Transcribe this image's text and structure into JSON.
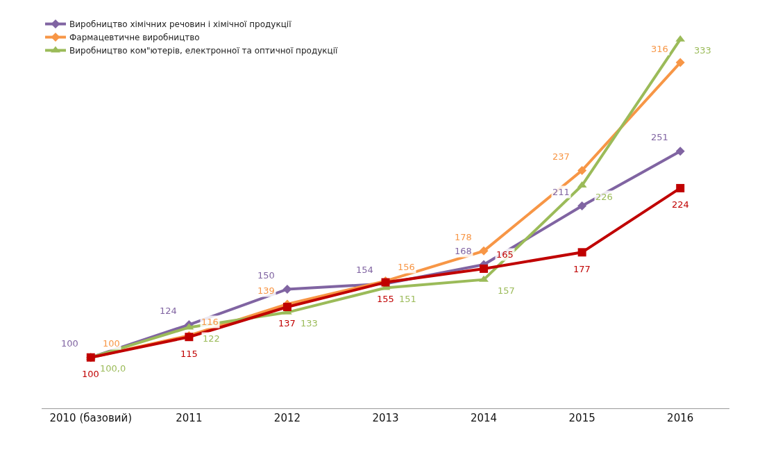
{
  "chart_data": {
    "type": "line",
    "categories": [
      "2010 (базовий)",
      "2011",
      "2012",
      "2013",
      "2014",
      "2015",
      "2016"
    ],
    "tick_labels": "x",
    "legend": "top left",
    "series": [
      {
        "name": "Виробництво хімічних речовин і хімічної продукції",
        "color": "#8064a2",
        "marker": "diamond",
        "values": [
          100,
          124,
          150,
          154,
          168,
          211,
          251
        ],
        "value_labels": [
          "100",
          "124",
          "150",
          "154",
          "168",
          "211",
          "251"
        ]
      },
      {
        "name": "Фармацевтичне виробництво",
        "color": "#f79646",
        "marker": "diamond",
        "values": [
          100,
          116,
          139,
          156,
          178,
          237,
          316
        ],
        "value_labels": [
          "100",
          "116",
          "139",
          "156",
          "178",
          "237",
          "316"
        ]
      },
      {
        "name": "Виробництво ком\"ютерів, електронної та оптичної продукції",
        "color": "#9bbb59",
        "marker": "triangle",
        "values": [
          100,
          122,
          133,
          151,
          157,
          226,
          333
        ],
        "value_labels": [
          "100,0",
          "122",
          "133",
          "151",
          "157",
          "226",
          "333"
        ]
      },
      {
        "color": "#c00000",
        "marker": "square",
        "values": [
          100,
          115,
          137,
          155,
          165,
          177,
          224
        ],
        "value_labels": [
          "100",
          "115",
          "137",
          "155",
          "165",
          "177",
          "224"
        ]
      }
    ]
  }
}
